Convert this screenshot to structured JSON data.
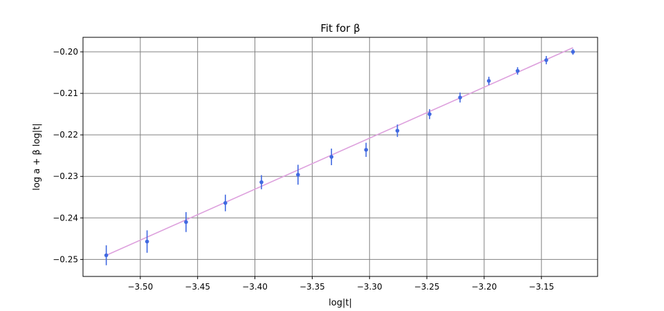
{
  "chart_data": {
    "type": "scatter",
    "title": "Fit for β",
    "xlabel": "log|t|",
    "ylabel": "log a + β log|t|",
    "xlim": [
      -3.55,
      -3.101
    ],
    "ylim": [
      -0.2541,
      -0.1965
    ],
    "x_ticks": [
      -3.5,
      -3.45,
      -3.4,
      -3.35,
      -3.3,
      -3.25,
      -3.2,
      -3.15
    ],
    "x_tick_labels": [
      "−3.50",
      "−3.45",
      "−3.40",
      "−3.35",
      "−3.30",
      "−3.25",
      "−3.20",
      "−3.15"
    ],
    "y_ticks": [
      -0.25,
      -0.24,
      -0.23,
      -0.22,
      -0.21,
      -0.2
    ],
    "y_tick_labels": [
      "−0.25",
      "−0.24",
      "−0.23",
      "−0.22",
      "−0.21",
      "−0.20"
    ],
    "grid": true,
    "series": [
      {
        "kind": "errorbar",
        "color": "#4169e1",
        "x": [
          -3.5297,
          -3.4941,
          -3.4601,
          -3.4258,
          -3.3943,
          -3.3624,
          -3.3332,
          -3.303,
          -3.2757,
          -3.2476,
          -3.221,
          -3.1959,
          -3.1708,
          -3.1458,
          -3.1225
        ],
        "y": [
          -0.249,
          -0.2457,
          -0.241,
          -0.2364,
          -0.2314,
          -0.2296,
          -0.2253,
          -0.2236,
          -0.219,
          -0.215,
          -0.211,
          -0.207,
          -0.2046,
          -0.202,
          -0.2
        ],
        "yerr": [
          0.0024,
          0.0027,
          0.0024,
          0.002,
          0.0017,
          0.0024,
          0.002,
          0.0017,
          0.0015,
          0.0012,
          0.0012,
          0.001,
          0.0009,
          0.001,
          0.0007
        ]
      },
      {
        "kind": "line",
        "color": "#dda0dd",
        "x": [
          -3.5297,
          -3.1225
        ],
        "y": [
          -0.249,
          -0.199
        ]
      }
    ]
  },
  "colors": {
    "grid": "#808080",
    "axes": "#000000",
    "points": "#4169e1",
    "fit": "#dda0dd"
  }
}
